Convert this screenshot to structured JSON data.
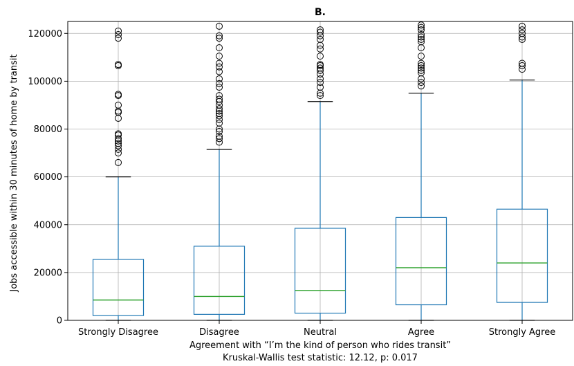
{
  "chart_data": {
    "type": "box",
    "title": "B.",
    "xlabel": "Agreement with “I’m the kind of person who rides transit”",
    "xlabel_line2": "Kruskal-Wallis test statistic: 12.12, p: 0.017",
    "ylabel": "Jobs accessible within 30 minutes of home by transit",
    "ylim": [
      0,
      125000
    ],
    "yticks": [
      0,
      20000,
      40000,
      60000,
      80000,
      100000,
      120000
    ],
    "ytick_labels": [
      "0",
      "20000",
      "40000",
      "60000",
      "80000",
      "100000",
      "120000"
    ],
    "grid": true,
    "colors": {
      "box": "#1f77b4",
      "median": "#2ca02c",
      "whisker": "#1f77b4",
      "cap": "#000000",
      "flier": "#000000",
      "grid": "#b0b0b0"
    },
    "categories": [
      "Strongly Disagree",
      "Disagree",
      "Neutral",
      "Agree",
      "Strongly Agree"
    ],
    "boxes": [
      {
        "name": "Strongly Disagree",
        "whislo": 0,
        "q1": 2000,
        "med": 8500,
        "q3": 25500,
        "whishi": 60000,
        "fliers": [
          66000,
          70000,
          71500,
          73000,
          74000,
          75000,
          76000,
          77500,
          78000,
          84500,
          87000,
          87500,
          90000,
          94000,
          94500,
          106500,
          107000,
          118000,
          119500,
          121000
        ]
      },
      {
        "name": "Disagree",
        "whislo": 0,
        "q1": 2500,
        "med": 10000,
        "q3": 31000,
        "whishi": 71500,
        "fliers": [
          74500,
          76000,
          77000,
          79000,
          80000,
          82500,
          84000,
          85500,
          86500,
          87500,
          88500,
          90000,
          91500,
          92500,
          94000,
          97500,
          99000,
          101000,
          104000,
          106000,
          107500,
          110500,
          114000,
          118000,
          119000,
          123000
        ]
      },
      {
        "name": "Neutral",
        "whislo": 0,
        "q1": 3000,
        "med": 12500,
        "q3": 38500,
        "whishi": 91500,
        "fliers": [
          94000,
          95000,
          97500,
          99500,
          101000,
          103000,
          104500,
          105500,
          106500,
          107000,
          110500,
          113500,
          115000,
          117500,
          119000,
          120500,
          121500
        ]
      },
      {
        "name": "Agree",
        "whislo": 0,
        "q1": 6500,
        "med": 22000,
        "q3": 43000,
        "whishi": 95000,
        "fliers": [
          98000,
          99500,
          101000,
          103500,
          104500,
          105500,
          106500,
          107500,
          110500,
          114000,
          116500,
          117500,
          118500,
          119500,
          121500,
          122500,
          123500
        ]
      },
      {
        "name": "Strongly Agree",
        "whislo": 0,
        "q1": 7500,
        "med": 24000,
        "q3": 46500,
        "whishi": 100500,
        "fliers": [
          105000,
          106500,
          107500,
          117500,
          118500,
          120000,
          121500,
          123000
        ]
      }
    ]
  }
}
